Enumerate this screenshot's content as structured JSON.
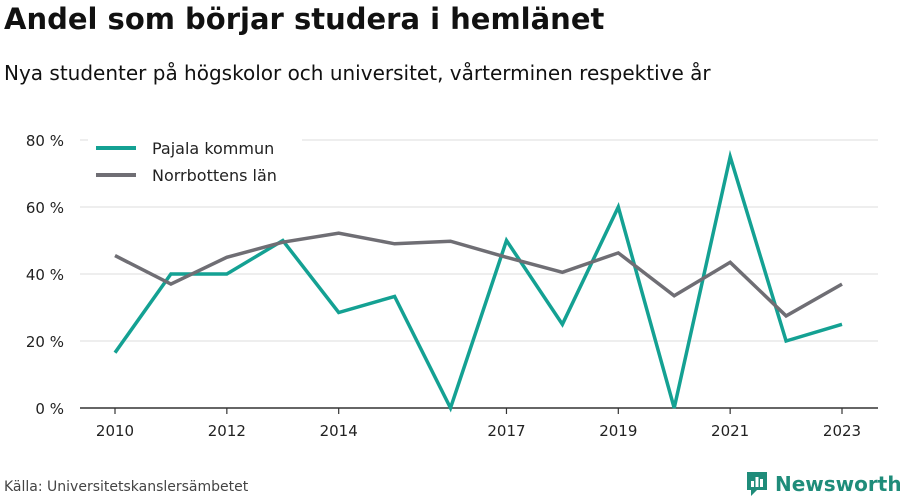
{
  "title": "Andel som börjar studera i hemlänet",
  "subtitle": "Nya studenter på högskolor och universitet, vårterminen respektive år",
  "source": "Källa: Universitetskanslersämbetet",
  "brand": "Newsworthy",
  "colors": {
    "pajala": "#14a193",
    "norrbotten": "#6f6e74",
    "grid": "#dddddd",
    "axis": "#333333",
    "brand": "#1f8c7a"
  },
  "chart_data": {
    "type": "line",
    "title": "Andel som börjar studera i hemlänet",
    "subtitle": "Nya studenter på högskolor och universitet, vårterminen respektive år",
    "xlabel": "",
    "ylabel": "",
    "x": [
      2010,
      2011,
      2012,
      2013,
      2014,
      2015,
      2016,
      2017,
      2018,
      2019,
      2020,
      2021,
      2022,
      2023
    ],
    "x_tick_labels": [
      "2010",
      "2012",
      "2014",
      "2017",
      "2019",
      "2021",
      "2023"
    ],
    "y_tick_labels": [
      "0 %",
      "20 %",
      "40 %",
      "60 %",
      "80 %"
    ],
    "ylim": [
      0,
      80
    ],
    "grid": true,
    "legend_position": "top-left",
    "series": [
      {
        "name": "Pajala kommun",
        "values": [
          16.5,
          40,
          40,
          50,
          28.5,
          33.3,
          0,
          50,
          25,
          60,
          0,
          75,
          20,
          25
        ]
      },
      {
        "name": "Norrbottens län",
        "values": [
          45.5,
          37,
          45,
          49.5,
          52.2,
          49,
          49.8,
          45,
          40.5,
          46.3,
          33.5,
          43.5,
          27.5,
          37
        ]
      }
    ]
  }
}
